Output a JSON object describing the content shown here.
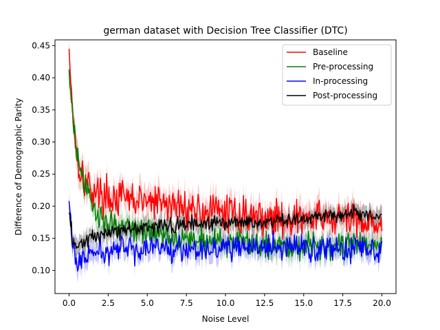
{
  "chart_data": {
    "type": "line",
    "title": "german dataset with Decision Tree Classifier (DTC)",
    "xlabel": "Noise Level",
    "ylabel": "Difference of Demographic Parity",
    "xlim": [
      -0.9,
      20.9
    ],
    "ylim": [
      0.064,
      0.459
    ],
    "xticks": [
      0.0,
      2.5,
      5.0,
      7.5,
      10.0,
      12.5,
      15.0,
      17.5,
      20.0
    ],
    "xtick_labels": [
      "0.0",
      "2.5",
      "5.0",
      "7.5",
      "10.0",
      "12.5",
      "15.0",
      "17.5",
      "20.0"
    ],
    "yticks": [
      0.1,
      0.15,
      0.2,
      0.25,
      0.3,
      0.35,
      0.4,
      0.45
    ],
    "ytick_labels": [
      "0.10",
      "0.15",
      "0.20",
      "0.25",
      "0.30",
      "0.35",
      "0.40",
      "0.45"
    ],
    "grid": false,
    "legend_position": "top-right",
    "x": [
      0.0,
      0.25,
      0.5,
      0.75,
      1.0,
      1.25,
      1.5,
      1.75,
      2.0,
      2.5,
      3.0,
      4.0,
      5.0,
      6.0,
      7.0,
      7.5,
      8.0,
      9.0,
      10.0,
      11.0,
      12.0,
      12.5,
      13.0,
      14.0,
      15.0,
      16.0,
      17.0,
      17.5,
      18.0,
      19.0,
      20.0
    ],
    "series": [
      {
        "name": "Baseline",
        "color": "#ff0000",
        "band_opacity": 0.22,
        "values": [
          0.445,
          0.345,
          0.28,
          0.255,
          0.24,
          0.232,
          0.226,
          0.222,
          0.218,
          0.215,
          0.212,
          0.21,
          0.207,
          0.204,
          0.2,
          0.198,
          0.195,
          0.192,
          0.19,
          0.187,
          0.185,
          0.183,
          0.181,
          0.18,
          0.18,
          0.18,
          0.18,
          0.18,
          0.178,
          0.178,
          0.175
        ],
        "spread": 0.028,
        "band": 0.018
      },
      {
        "name": "Pre-processing",
        "color": "#008000",
        "band_opacity": 0.22,
        "values": [
          0.413,
          0.335,
          0.28,
          0.25,
          0.232,
          0.215,
          0.2,
          0.19,
          0.183,
          0.178,
          0.172,
          0.165,
          0.16,
          0.156,
          0.152,
          0.15,
          0.148,
          0.146,
          0.145,
          0.143,
          0.142,
          0.141,
          0.14,
          0.14,
          0.14,
          0.14,
          0.14,
          0.14,
          0.14,
          0.14,
          0.14
        ],
        "spread": 0.02,
        "band": 0.015
      },
      {
        "name": "In-processing",
        "color": "#0000ff",
        "band_opacity": 0.22,
        "values": [
          0.208,
          0.135,
          0.11,
          0.115,
          0.12,
          0.123,
          0.125,
          0.127,
          0.128,
          0.13,
          0.132,
          0.134,
          0.135,
          0.135,
          0.135,
          0.135,
          0.135,
          0.135,
          0.135,
          0.135,
          0.135,
          0.135,
          0.135,
          0.135,
          0.135,
          0.135,
          0.135,
          0.135,
          0.135,
          0.135,
          0.14
        ],
        "spread": 0.02,
        "band": 0.014
      },
      {
        "name": "Post-processing",
        "color": "#000000",
        "band_opacity": 0.28,
        "values": [
          0.19,
          0.14,
          0.135,
          0.14,
          0.145,
          0.148,
          0.15,
          0.152,
          0.155,
          0.16,
          0.162,
          0.165,
          0.167,
          0.17,
          0.17,
          0.172,
          0.172,
          0.173,
          0.174,
          0.175,
          0.176,
          0.176,
          0.177,
          0.178,
          0.18,
          0.182,
          0.185,
          0.187,
          0.188,
          0.188,
          0.185
        ],
        "spread": 0.012,
        "band": 0.012
      }
    ]
  }
}
